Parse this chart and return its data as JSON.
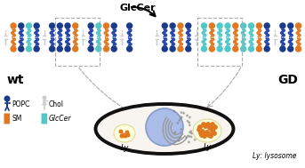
{
  "title": "GlcCer",
  "wt_label": "wt",
  "gd_label": "GD",
  "ly_label": "Ly",
  "lysosome_note": "Ly: lysosome",
  "popc_head": "#1a3a8a",
  "popc_tail": "#2244aa",
  "sm_head": "#e07820",
  "sm_tail": "#e07820",
  "glccer_head": "#50c8c8",
  "glccer_tail": "#50c8c8",
  "chol_color": "#cccccc",
  "cell_bg": "#f8f4ef",
  "cell_edge": "#111111",
  "nucleus_fill": "#aabde8",
  "nucleus_edge": "#8899cc",
  "ly_bg": "#ffffdd",
  "ly_edge": "#dddd99",
  "deposit_color": "#e07820",
  "arrow_main_color": "#111111",
  "arrow_dash_color": "#aaaaaa",
  "figsize": [
    3.43,
    1.89
  ],
  "dpi": 100
}
